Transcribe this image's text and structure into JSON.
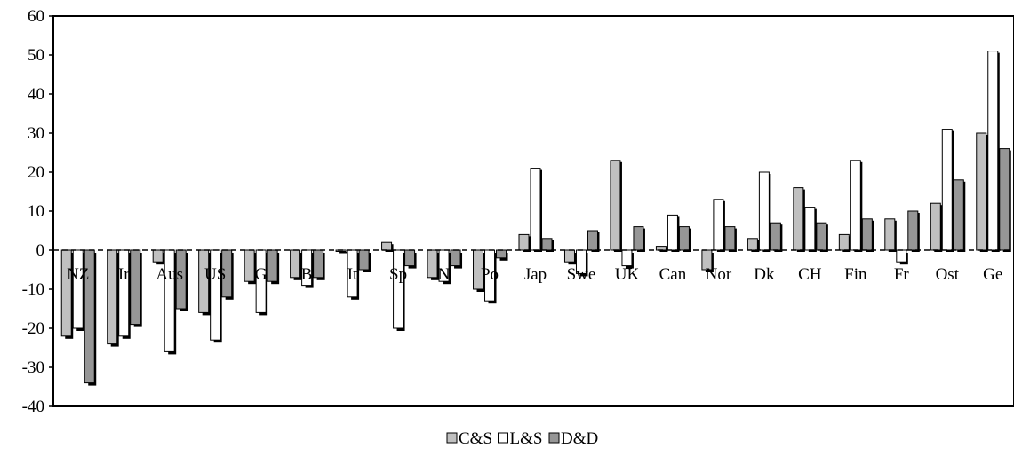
{
  "chart_data": {
    "type": "bar",
    "title": "",
    "xlabel": "",
    "ylabel": "",
    "ylim": [
      -40,
      60
    ],
    "yticks": [
      60,
      50,
      40,
      30,
      20,
      10,
      0,
      -10,
      -20,
      -30,
      -40
    ],
    "grid": false,
    "legend_position": "bottom-center",
    "categories": [
      "NZ",
      "Ir",
      "Aus",
      "US",
      "G",
      "B",
      "It",
      "Sp",
      "N",
      "Po",
      "Jap",
      "Swe",
      "UK",
      "Can",
      "Nor",
      "Dk",
      "CH",
      "Fin",
      "Fr",
      "Ost",
      "Ge"
    ],
    "series": [
      {
        "name": "C&S",
        "color": "#c0c0c0",
        "values": [
          -22,
          -24,
          -3,
          -16,
          -8,
          -7,
          0,
          2,
          -7,
          -10,
          4,
          -3,
          23,
          1,
          -5,
          3,
          16,
          4,
          8,
          12,
          30
        ]
      },
      {
        "name": "L&S",
        "color": "#ffffff",
        "values": [
          -20,
          -22,
          -26,
          -23,
          -16,
          -9,
          -12,
          -20,
          -8,
          -13,
          21,
          -6,
          -4,
          9,
          13,
          20,
          11,
          23,
          -3,
          31,
          51
        ]
      },
      {
        "name": "D&D",
        "color": "#969696",
        "values": [
          -34,
          -19,
          -15,
          -12,
          -8,
          -7,
          -5,
          -4,
          -4,
          -2,
          3,
          5,
          6,
          6,
          6,
          7,
          7,
          8,
          10,
          18,
          26
        ]
      }
    ]
  }
}
